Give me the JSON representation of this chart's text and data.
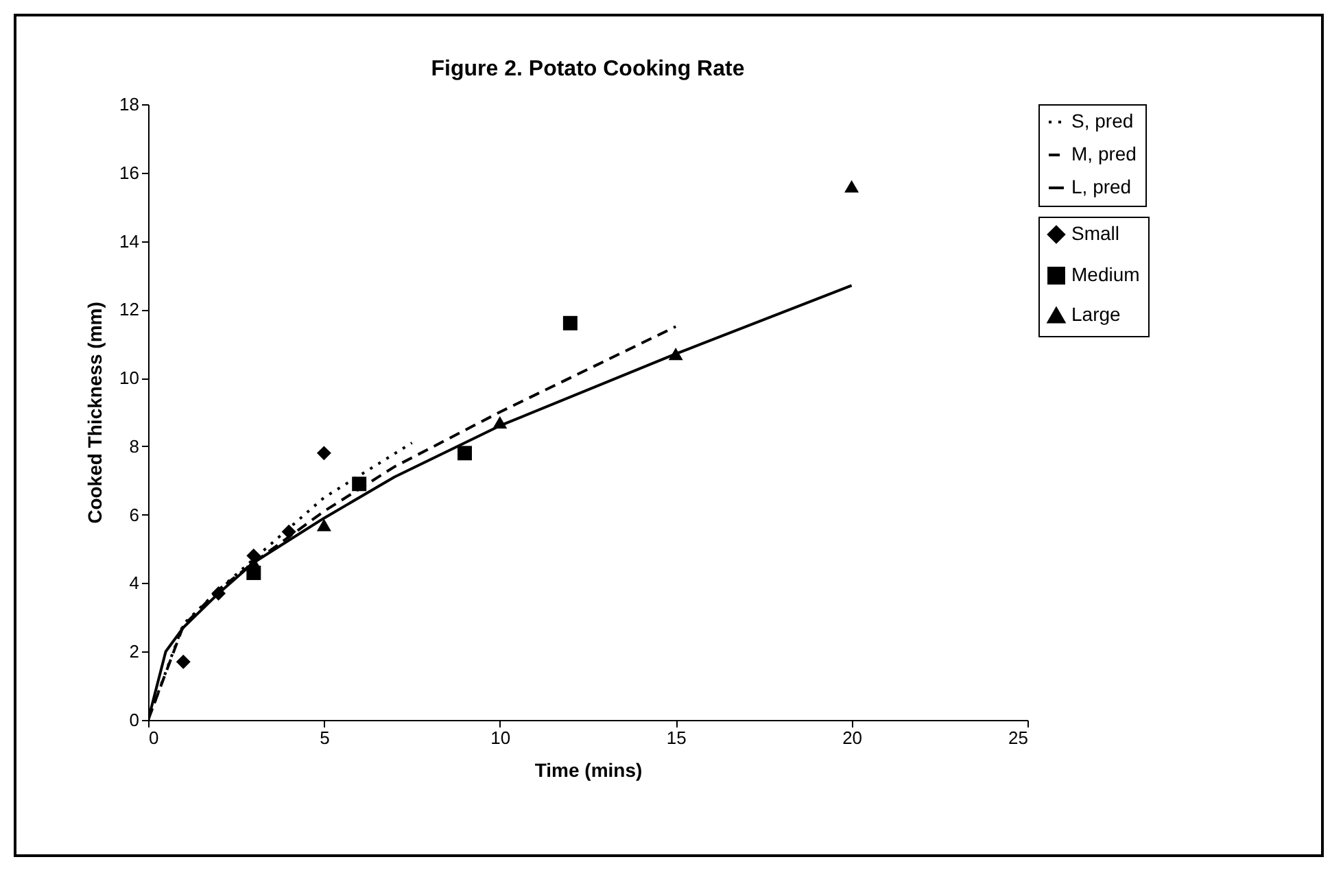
{
  "chart_data": {
    "type": "scatter",
    "title": "Figure 2.  Potato Cooking Rate",
    "xlabel": "Time (mins)",
    "ylabel": "Cooked Thickness (mm)",
    "xlim": [
      0,
      25
    ],
    "xticks": [
      0,
      5,
      10,
      15,
      20,
      25
    ],
    "ylim": [
      0,
      18
    ],
    "yticks": [
      0,
      2,
      4,
      6,
      8,
      10,
      12,
      14,
      16,
      18
    ],
    "grid": false,
    "legend": "right",
    "series": [
      {
        "name": "Small",
        "type": "scatter",
        "marker": "diamond",
        "color": "#000000",
        "x": [
          1,
          2,
          3,
          4,
          5
        ],
        "values": [
          1.7,
          3.7,
          4.8,
          5.5,
          7.8
        ]
      },
      {
        "name": "Medium",
        "type": "scatter",
        "marker": "square",
        "color": "#000000",
        "x": [
          3,
          6,
          9,
          12
        ],
        "values": [
          4.3,
          6.9,
          7.8,
          11.6
        ]
      },
      {
        "name": "Large",
        "type": "scatter",
        "marker": "triangle",
        "color": "#000000",
        "x": [
          3,
          5,
          10,
          15,
          20
        ],
        "values": [
          4.6,
          5.7,
          8.7,
          10.7,
          15.6
        ]
      },
      {
        "name": "S, pred",
        "type": "line",
        "line_style": "dotted",
        "color": "#000000",
        "x": [
          0,
          1,
          2,
          3,
          5,
          7.5
        ],
        "values": [
          0,
          2.8,
          3.8,
          4.7,
          6.5,
          8.1
        ]
      },
      {
        "name": "M, pred",
        "type": "line",
        "line_style": "dashed",
        "color": "#000000",
        "x": [
          0,
          1,
          2,
          3,
          5,
          7,
          10,
          15
        ],
        "values": [
          0,
          2.75,
          3.8,
          4.6,
          6.1,
          7.4,
          9.0,
          11.5
        ]
      },
      {
        "name": "L, pred",
        "type": "line",
        "line_style": "solid",
        "color": "#000000",
        "x": [
          0,
          0.5,
          1,
          2,
          3,
          5,
          7,
          10,
          15,
          20
        ],
        "values": [
          0,
          2.0,
          2.7,
          3.7,
          4.6,
          5.9,
          7.1,
          8.6,
          10.7,
          12.7
        ]
      }
    ]
  }
}
